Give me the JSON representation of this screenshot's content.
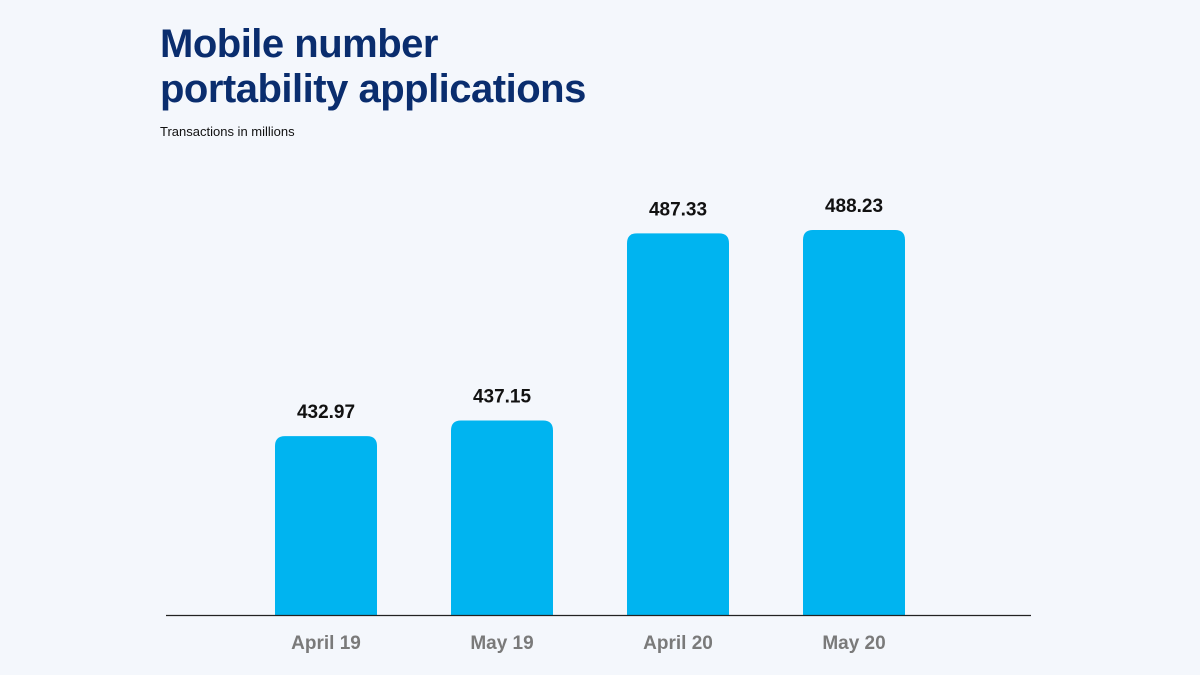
{
  "chart_data": {
    "type": "bar",
    "title_line1": "Mobile number",
    "title_line2": "portability applications",
    "subtitle": "Transactions in millions",
    "categories": [
      "April 19",
      "May 19",
      "April 20",
      "May 20"
    ],
    "values": [
      432.97,
      437.15,
      487.33,
      488.23
    ],
    "value_labels": [
      "432.97",
      "437.15",
      "487.33",
      "488.23"
    ],
    "xlabel": "",
    "ylabel": "",
    "ylim": [
      385,
      490
    ],
    "grid": false,
    "bar_color": "#00b4f0",
    "title_color": "#0a2d6e"
  }
}
